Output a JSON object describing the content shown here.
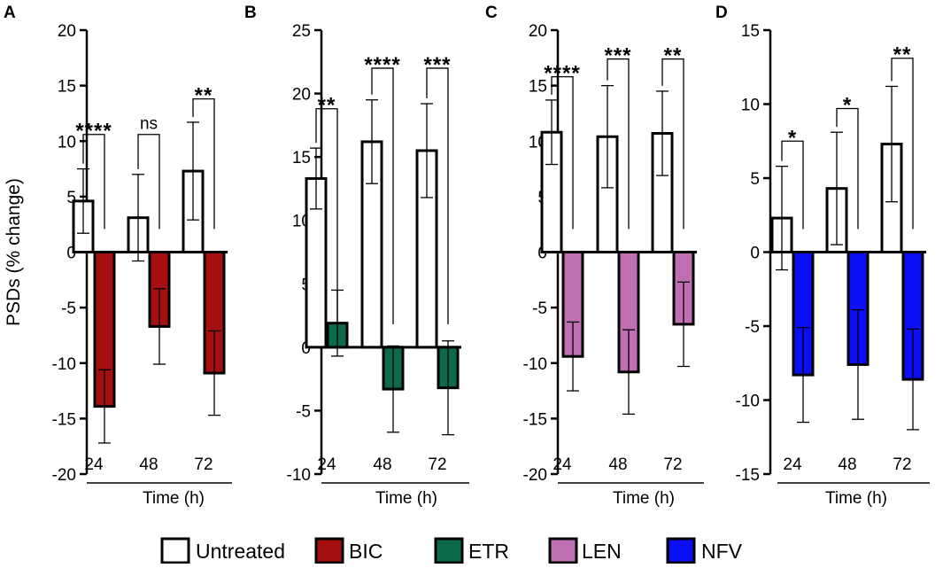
{
  "chart_data": [
    {
      "type": "bar",
      "panel_label": "A",
      "title": "",
      "categories": [
        "24",
        "48",
        "72"
      ],
      "xlabel": "Time (h)",
      "ylabel": "PSDs (% change)",
      "ylim": [
        -20,
        20
      ],
      "yticks": [
        20,
        15,
        10,
        5,
        0,
        -5,
        -10,
        -15,
        -20
      ],
      "yticks_text": [
        "20",
        "15",
        "10",
        "5",
        "0",
        "-5",
        "-10",
        "-15",
        "-20"
      ],
      "series": [
        {
          "name": "Untreated",
          "color": "#ffffff",
          "values": [
            4.6,
            3.1,
            7.3
          ],
          "errors": [
            2.9,
            3.9,
            4.4
          ]
        },
        {
          "name": "BIC",
          "color": "#a50f0f",
          "values": [
            -13.9,
            -6.7,
            -10.9
          ],
          "errors": [
            3.3,
            3.4,
            3.8
          ]
        }
      ],
      "significance": [
        "****",
        "ns",
        "**"
      ],
      "sig_bracket_top": [
        10.6,
        10.6,
        13.8
      ]
    },
    {
      "type": "bar",
      "panel_label": "B",
      "title": "",
      "categories": [
        "24",
        "48",
        "72"
      ],
      "xlabel": "Time (h)",
      "ylabel": "",
      "ylim": [
        -10,
        25
      ],
      "yticks": [
        25,
        20,
        15,
        10,
        5,
        0,
        -5,
        -10
      ],
      "yticks_text": [
        "25",
        "20",
        "15",
        "10",
        "5",
        "0",
        "-5",
        "-10"
      ],
      "series": [
        {
          "name": "Untreated",
          "color": "#ffffff",
          "values": [
            13.3,
            16.2,
            15.5
          ],
          "errors": [
            2.4,
            3.3,
            3.7
          ]
        },
        {
          "name": "ETR",
          "color": "#0d6b4a",
          "values": [
            1.9,
            -3.3,
            -3.2
          ],
          "errors": [
            2.6,
            3.4,
            3.7
          ]
        }
      ],
      "significance": [
        "**",
        "****",
        "***"
      ],
      "sig_bracket_top": [
        18.8,
        22.0,
        22.0
      ]
    },
    {
      "type": "bar",
      "panel_label": "C",
      "title": "",
      "categories": [
        "24",
        "48",
        "72"
      ],
      "xlabel": "Time (h)",
      "ylabel": "",
      "ylim": [
        -20,
        20
      ],
      "yticks": [
        20,
        15,
        10,
        5,
        0,
        -5,
        -10,
        -15,
        -20
      ],
      "yticks_text": [
        "20",
        "15",
        "10",
        "5",
        "0",
        "-5",
        "-10",
        "-15",
        "-20"
      ],
      "series": [
        {
          "name": "Untreated",
          "color": "#ffffff",
          "values": [
            10.8,
            10.4,
            10.7
          ],
          "errors": [
            2.9,
            4.6,
            3.8
          ]
        },
        {
          "name": "LEN",
          "color": "#c06fb2",
          "values": [
            -9.4,
            -10.8,
            -6.5
          ],
          "errors": [
            3.1,
            3.8,
            3.8
          ]
        }
      ],
      "significance": [
        "****",
        "***",
        "**"
      ],
      "sig_bracket_top": [
        15.8,
        17.4,
        17.4
      ]
    },
    {
      "type": "bar",
      "panel_label": "D",
      "title": "",
      "categories": [
        "24",
        "48",
        "72"
      ],
      "xlabel": "Time (h)",
      "ylabel": "",
      "ylim": [
        -15,
        15
      ],
      "yticks": [
        15,
        10,
        5,
        0,
        -5,
        -10,
        -15
      ],
      "yticks_text": [
        "15",
        "10",
        "5",
        "0",
        "-5",
        "-10",
        "-15"
      ],
      "series": [
        {
          "name": "Untreated",
          "color": "#ffffff",
          "values": [
            2.3,
            4.3,
            7.3
          ],
          "errors": [
            3.5,
            3.8,
            3.9
          ]
        },
        {
          "name": "NFV",
          "color": "#0a10f3",
          "values": [
            -8.3,
            -7.6,
            -8.6
          ],
          "errors": [
            3.2,
            3.7,
            3.4
          ]
        }
      ],
      "significance": [
        "*",
        "*",
        "**"
      ],
      "sig_bracket_top": [
        7.5,
        9.7,
        13.1
      ]
    }
  ],
  "legend": [
    {
      "name": "Untreated",
      "color": "#ffffff"
    },
    {
      "name": "BIC",
      "color": "#a50f0f"
    },
    {
      "name": "ETR",
      "color": "#0d6b4a"
    },
    {
      "name": "LEN",
      "color": "#c06fb2"
    },
    {
      "name": "NFV",
      "color": "#0a10f3"
    }
  ]
}
